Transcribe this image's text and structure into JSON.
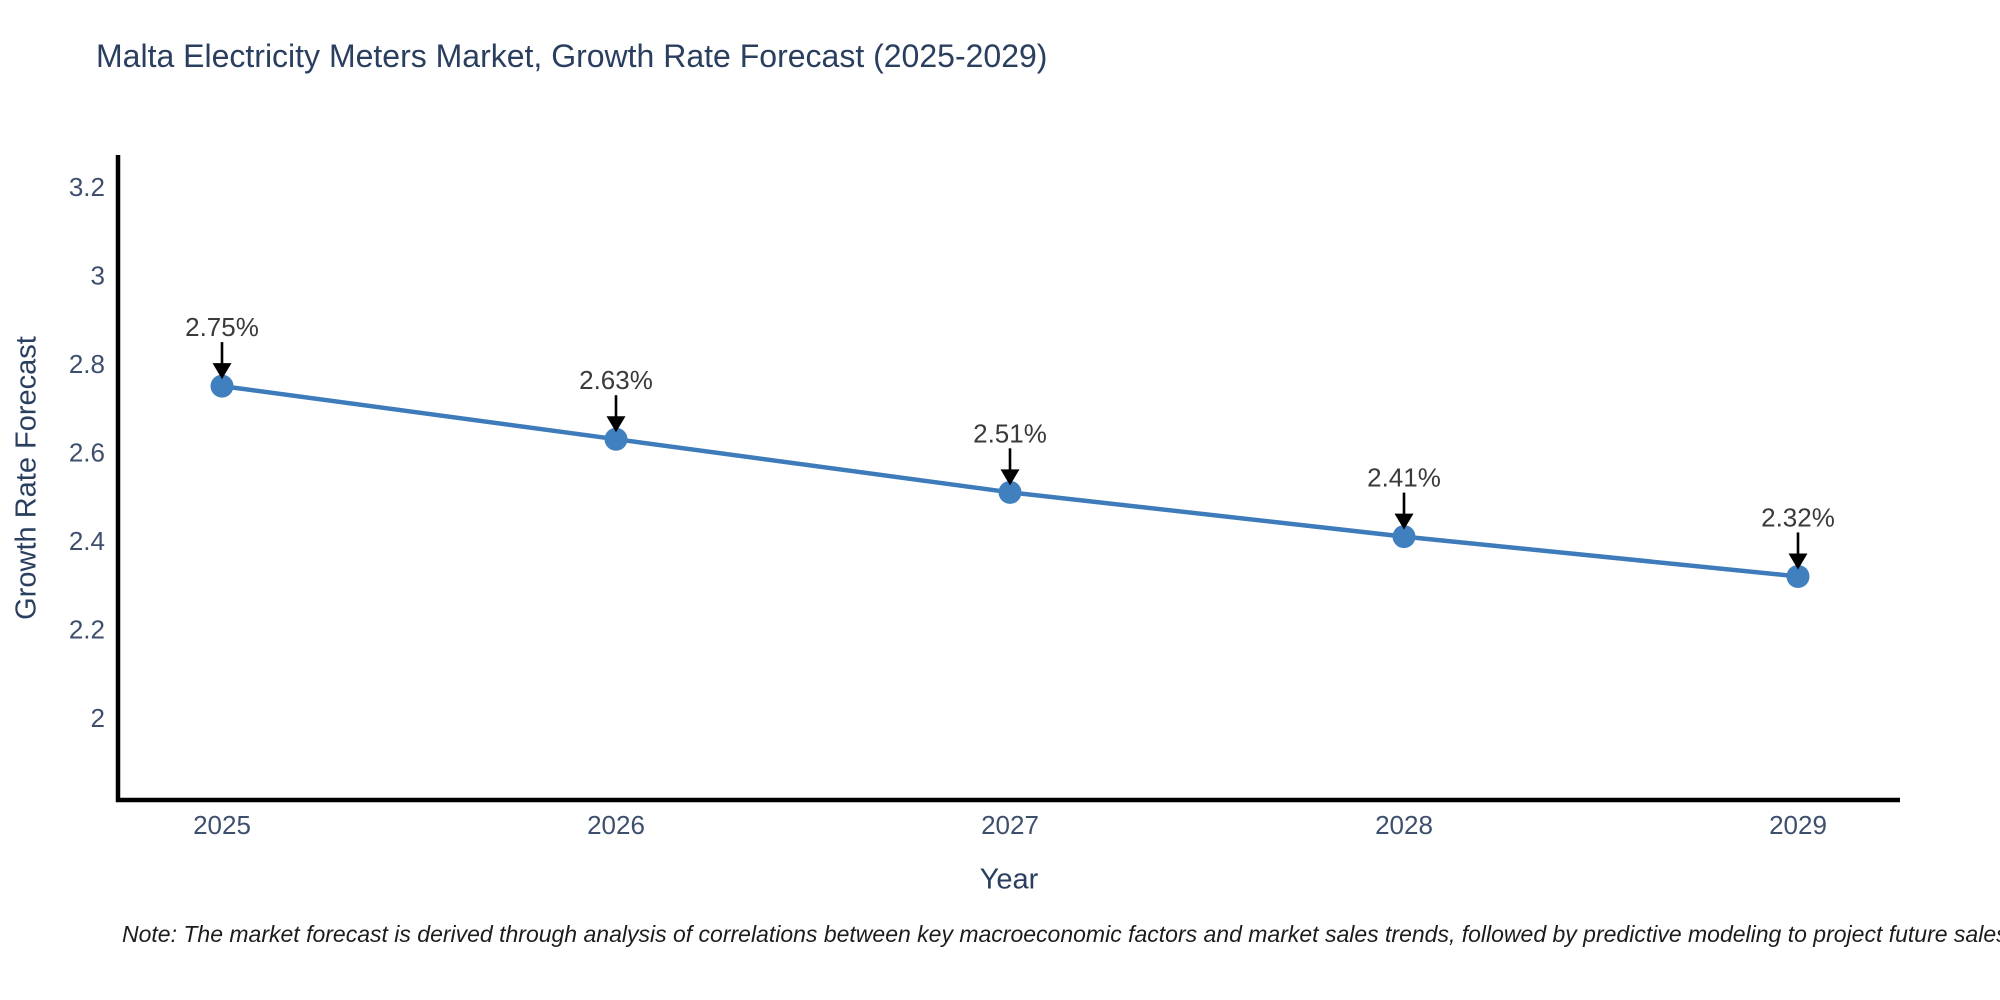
{
  "title": "Malta Electricity Meters Market, Growth Rate Forecast (2025-2029)",
  "note": "Note: The market forecast is derived through analysis of correlations between key macroeconomic factors and market sales trends, followed by predictive modeling to project future sales",
  "chart_data": {
    "type": "line",
    "title": "Malta Electricity Meters Market, Growth Rate Forecast (2025-2029)",
    "xlabel": "Year",
    "ylabel": "Growth Rate Forecast",
    "x": [
      2025,
      2026,
      2027,
      2028,
      2029
    ],
    "series": [
      {
        "name": "Growth Rate Forecast",
        "values": [
          2.75,
          2.63,
          2.51,
          2.41,
          2.32
        ],
        "point_labels": [
          "2.75%",
          "2.63%",
          "2.51%",
          "2.41%",
          "2.32%"
        ]
      }
    ],
    "yticks": [
      2,
      2.2,
      2.4,
      2.6,
      2.8,
      3,
      3.2
    ],
    "ylim": [
      1.815,
      3.272
    ],
    "grid": false,
    "legend_position": "none",
    "annotations_style": "value label with black arrow pointing down to marker",
    "colors": {
      "line": "#3d7bba",
      "marker": "#4180bf",
      "arrow": "#000000",
      "axis_line": "#000000",
      "title_text": "#2a3f5f",
      "tick_text": "#3e4f6e",
      "annotation_text": "#3a3a3a",
      "note_text": "#1c1c1c",
      "background": "#ffffff"
    }
  }
}
